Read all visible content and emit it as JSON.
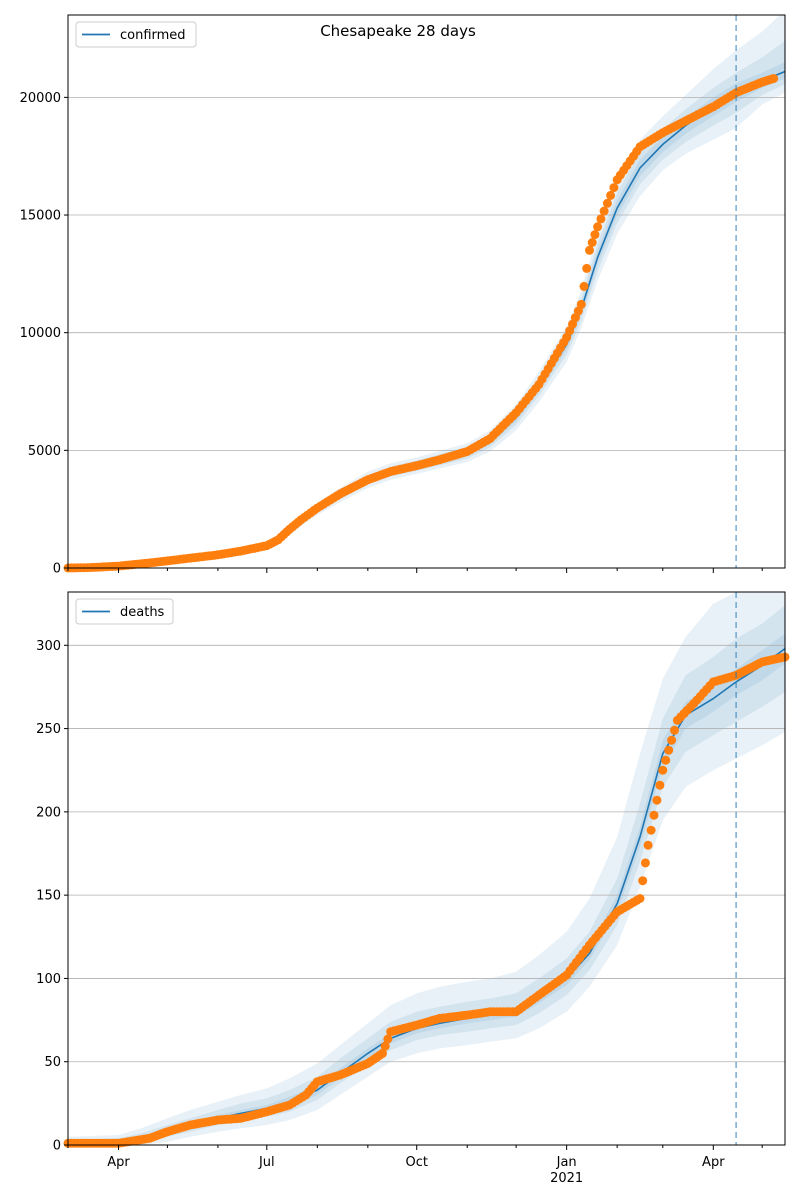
{
  "figure": {
    "title": "Chesapeake 28 days"
  },
  "colors": {
    "line": "#1f77b4",
    "band": "#1f77b4",
    "points": "#ff7f0e",
    "vline": "#1f77b4",
    "grid": "#b0b0b0"
  },
  "x_axis": {
    "range": [
      "2020-03-01",
      "2021-05-15"
    ],
    "tick_labels": [
      {
        "date": "2020-04-01",
        "label": "Apr"
      },
      {
        "date": "2020-07-01",
        "label": "Jul"
      },
      {
        "date": "2020-10-01",
        "label": "Oct"
      },
      {
        "date": "2021-01-01",
        "label": "Jan"
      },
      {
        "date": "2021-04-01",
        "label": "Apr"
      }
    ],
    "year_label": "2021",
    "forecast_start": "2021-04-15"
  },
  "chart_data": [
    {
      "type": "line",
      "title": "Chesapeake 28 days",
      "legend": [
        "confirmed"
      ],
      "legend_position": "top-left",
      "grid": "horizontal",
      "ylim": [
        0,
        23500
      ],
      "yticks": [
        0,
        5000,
        10000,
        15000,
        20000
      ],
      "series": [
        {
          "name": "confirmed",
          "kind": "model-line",
          "x": [
            "2020-03-01",
            "2020-03-15",
            "2020-04-01",
            "2020-04-15",
            "2020-05-01",
            "2020-05-15",
            "2020-06-01",
            "2020-06-15",
            "2020-07-01",
            "2020-07-08",
            "2020-07-15",
            "2020-07-22",
            "2020-08-01",
            "2020-08-15",
            "2020-09-01",
            "2020-09-15",
            "2020-10-01",
            "2020-10-15",
            "2020-11-01",
            "2020-11-15",
            "2020-12-01",
            "2020-12-15",
            "2021-01-01",
            "2021-01-10",
            "2021-01-20",
            "2021-02-01",
            "2021-02-15",
            "2021-03-01",
            "2021-03-15",
            "2021-04-01",
            "2021-04-15",
            "2021-05-01",
            "2021-05-15"
          ],
          "values": [
            0,
            20,
            80,
            180,
            300,
            420,
            560,
            720,
            950,
            1200,
            1600,
            2000,
            2500,
            3100,
            3750,
            4100,
            4350,
            4600,
            4900,
            5400,
            6400,
            7700,
            9500,
            11000,
            13200,
            15300,
            17000,
            18000,
            18800,
            19600,
            20200,
            20700,
            21100
          ]
        },
        {
          "name": "observed",
          "kind": "points",
          "x": [
            "2020-03-01",
            "2020-03-15",
            "2020-04-01",
            "2020-04-15",
            "2020-05-01",
            "2020-05-15",
            "2020-06-01",
            "2020-06-15",
            "2020-07-01",
            "2020-07-08",
            "2020-07-15",
            "2020-07-22",
            "2020-08-01",
            "2020-08-15",
            "2020-09-01",
            "2020-09-15",
            "2020-10-01",
            "2020-10-15",
            "2020-11-01",
            "2020-11-15",
            "2020-12-01",
            "2020-12-15",
            "2021-01-01",
            "2021-01-10",
            "2021-01-15",
            "2021-01-20",
            "2021-02-01",
            "2021-02-15",
            "2021-03-01",
            "2021-03-15",
            "2021-04-01",
            "2021-04-15",
            "2021-05-01",
            "2021-05-08"
          ],
          "values": [
            0,
            20,
            80,
            180,
            300,
            420,
            560,
            720,
            950,
            1200,
            1650,
            2050,
            2550,
            3150,
            3750,
            4100,
            4350,
            4600,
            4950,
            5500,
            6600,
            7800,
            9800,
            11200,
            13500,
            14500,
            16500,
            17900,
            18500,
            19000,
            19600,
            20200,
            20650,
            20800
          ]
        }
      ],
      "uncertainty_bands": [
        {
          "lower": [
            0,
            10,
            50,
            140,
            240,
            340,
            470,
            610,
            820,
            1050,
            1400,
            1780,
            2250,
            2800,
            3400,
            3750,
            4000,
            4230,
            4500,
            4950,
            5850,
            7050,
            8750,
            10200,
            12200,
            14200,
            15800,
            16900,
            17600,
            18200,
            18700,
            19700,
            20200
          ],
          "upper": [
            0,
            30,
            110,
            220,
            360,
            500,
            650,
            830,
            1080,
            1350,
            1800,
            2220,
            2750,
            3400,
            4100,
            4450,
            4700,
            4970,
            5300,
            5850,
            6950,
            8350,
            10250,
            11800,
            14200,
            16400,
            18200,
            19200,
            20100,
            21200,
            22000,
            22800,
            23700
          ]
        },
        {
          "lower": [
            0,
            15,
            60,
            155,
            260,
            370,
            500,
            650,
            870,
            1110,
            1480,
            1870,
            2350,
            2930,
            3550,
            3890,
            4130,
            4360,
            4650,
            5130,
            6080,
            7320,
            9050,
            10500,
            12600,
            14650,
            16300,
            17350,
            18100,
            18800,
            19350,
            20100,
            20550
          ],
          "upper": [
            0,
            25,
            100,
            205,
            340,
            470,
            620,
            790,
            1030,
            1290,
            1720,
            2130,
            2650,
            3270,
            3950,
            4310,
            4570,
            4840,
            5150,
            5670,
            6720,
            8080,
            9950,
            11500,
            13800,
            15950,
            17700,
            18650,
            19500,
            20400,
            21050,
            21700,
            22400
          ]
        },
        {
          "lower": [
            0,
            18,
            70,
            168,
            280,
            395,
            530,
            685,
            910,
            1155,
            1540,
            1935,
            2425,
            3015,
            3650,
            3995,
            4240,
            4480,
            4775,
            5265,
            6240,
            7510,
            9275,
            10750,
            12900,
            14975,
            16650,
            17675,
            18450,
            19200,
            19800,
            20400,
            20800
          ],
          "upper": [
            0,
            22,
            90,
            192,
            320,
            445,
            590,
            755,
            990,
            1245,
            1660,
            2065,
            2575,
            3185,
            3850,
            4205,
            4460,
            4720,
            5025,
            5535,
            6560,
            7890,
            9725,
            11250,
            13500,
            15625,
            17350,
            18325,
            19150,
            20000,
            20600,
            21050,
            21500
          ]
        }
      ]
    },
    {
      "type": "line",
      "title": "",
      "legend": [
        "deaths"
      ],
      "legend_position": "top-left",
      "grid": "horizontal",
      "ylim": [
        0,
        332
      ],
      "yticks": [
        0,
        50,
        100,
        150,
        200,
        250,
        300
      ],
      "series": [
        {
          "name": "deaths",
          "kind": "model-line",
          "x": [
            "2020-03-01",
            "2020-04-01",
            "2020-04-15",
            "2020-05-01",
            "2020-05-15",
            "2020-06-01",
            "2020-06-15",
            "2020-07-01",
            "2020-07-15",
            "2020-08-01",
            "2020-08-15",
            "2020-09-01",
            "2020-09-15",
            "2020-10-01",
            "2020-10-15",
            "2020-11-01",
            "2020-11-15",
            "2020-12-01",
            "2020-12-15",
            "2021-01-01",
            "2021-01-15",
            "2021-02-01",
            "2021-02-15",
            "2021-03-01",
            "2021-03-15",
            "2021-04-01",
            "2021-04-15",
            "2021-05-01",
            "2021-05-15"
          ],
          "values": [
            0,
            2,
            4,
            8,
            12,
            16,
            19,
            22,
            26,
            33,
            43,
            55,
            64,
            70,
            73,
            76,
            78,
            80,
            88,
            100,
            115,
            145,
            185,
            235,
            258,
            268,
            278,
            288,
            298
          ]
        },
        {
          "name": "observed",
          "kind": "points",
          "x": [
            "2020-03-01",
            "2020-04-01",
            "2020-04-20",
            "2020-05-01",
            "2020-05-15",
            "2020-06-01",
            "2020-06-15",
            "2020-07-01",
            "2020-07-15",
            "2020-07-25",
            "2020-08-01",
            "2020-08-15",
            "2020-09-01",
            "2020-09-10",
            "2020-09-15",
            "2020-10-01",
            "2020-10-15",
            "2020-11-01",
            "2020-11-15",
            "2020-12-01",
            "2020-12-15",
            "2021-01-01",
            "2021-01-15",
            "2021-02-01",
            "2021-02-15",
            "2021-02-20",
            "2021-03-01",
            "2021-03-10",
            "2021-03-20",
            "2021-04-01",
            "2021-04-15",
            "2021-05-01",
            "2021-05-15"
          ],
          "values": [
            1,
            1,
            4,
            8,
            12,
            15,
            16,
            20,
            24,
            30,
            38,
            42,
            49,
            55,
            68,
            72,
            76,
            78,
            80,
            80,
            90,
            102,
            120,
            140,
            148,
            180,
            225,
            255,
            265,
            278,
            282,
            290,
            293
          ]
        }
      ],
      "uncertainty_bands": [
        {
          "lower": [
            0,
            0,
            0,
            2,
            5,
            8,
            10,
            12,
            15,
            21,
            30,
            41,
            50,
            55,
            58,
            60,
            62,
            64,
            70,
            80,
            95,
            120,
            155,
            195,
            215,
            225,
            232,
            240,
            248
          ],
          "upper": [
            5,
            6,
            10,
            16,
            21,
            26,
            30,
            34,
            40,
            49,
            60,
            73,
            84,
            91,
            95,
            98,
            100,
            104,
            114,
            128,
            148,
            185,
            235,
            280,
            305,
            325,
            332,
            332,
            332
          ]
        },
        {
          "lower": [
            0,
            1,
            2,
            5,
            8,
            12,
            14,
            17,
            20,
            27,
            37,
            48,
            57,
            63,
            66,
            68,
            70,
            72,
            79,
            90,
            105,
            132,
            170,
            215,
            236,
            246,
            254,
            263,
            272
          ],
          "upper": [
            3,
            4,
            7,
            12,
            16,
            21,
            25,
            28,
            33,
            41,
            52,
            64,
            74,
            80,
            83,
            86,
            88,
            91,
            100,
            112,
            128,
            160,
            205,
            256,
            282,
            293,
            304,
            313,
            324
          ]
        },
        {
          "lower": [
            0,
            1,
            3,
            6,
            10,
            14,
            17,
            20,
            23,
            30,
            40,
            52,
            61,
            67,
            70,
            73,
            75,
            77,
            85,
            96,
            111,
            140,
            179,
            227,
            250,
            260,
            270,
            279,
            289
          ],
          "upper": [
            1,
            3,
            5,
            10,
            14,
            18,
            21,
            24,
            29,
            36,
            46,
            58,
            67,
            73,
            76,
            79,
            81,
            83,
            91,
            104,
            119,
            150,
            191,
            243,
            266,
            276,
            286,
            297,
            307
          ]
        }
      ]
    }
  ]
}
